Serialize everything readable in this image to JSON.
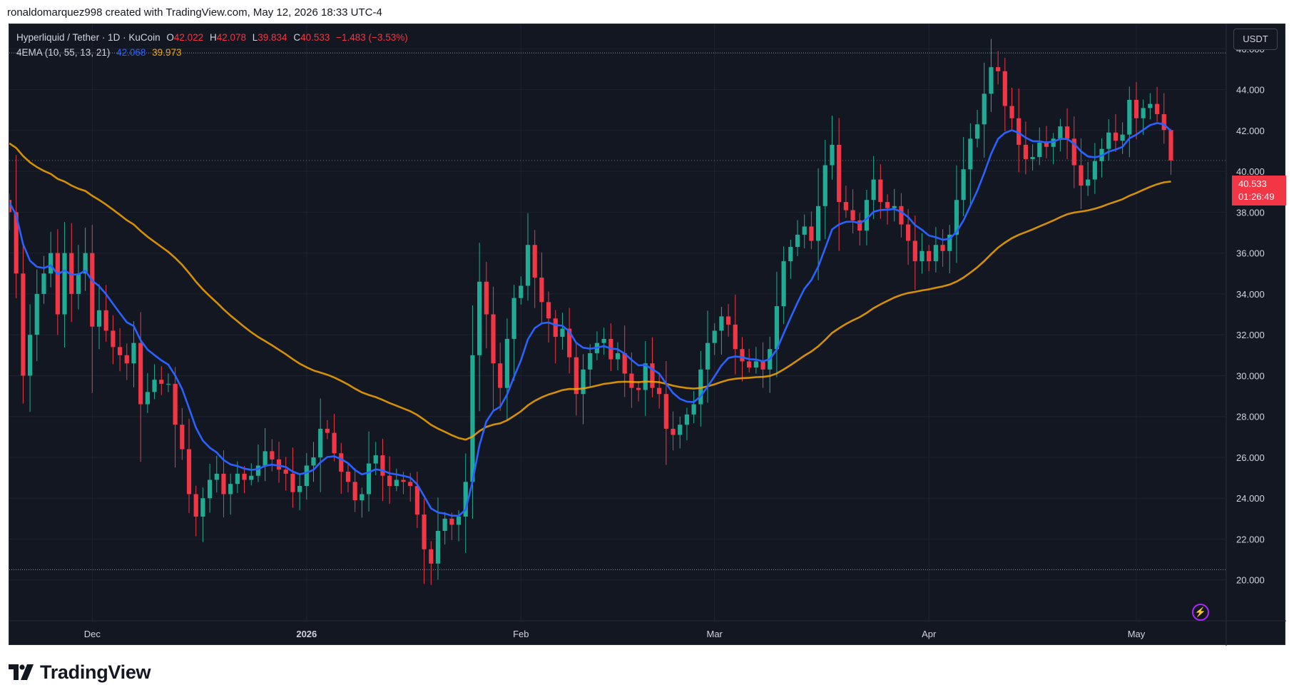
{
  "header": {
    "credit": "ronaldomarquez998 created with TradingView.com, May 12, 2026 18:33 UTC-4"
  },
  "legend": {
    "symbol": "Hyperliquid / Tether · 1D · KuCoin",
    "o_label": "O",
    "o": "42.022",
    "h_label": "H",
    "h": "42.078",
    "l_label": "L",
    "l": "39.834",
    "c_label": "C",
    "c": "40.533",
    "change": "−1.483 (−3.53%)",
    "indicator": "4EMA (10, 55, 13, 21)",
    "ema_fast": "42.068",
    "ema_slow": "39.973"
  },
  "currency_button": "USDT",
  "last_price": {
    "price": "40.533",
    "countdown": "01:26:49"
  },
  "brand": {
    "name": "TradingView"
  },
  "icons": {
    "bolt": "lightning-icon",
    "logo": "tradingview-logo-icon"
  },
  "colors": {
    "up": "#22ab94",
    "down": "#f23645",
    "ema_fast": "#2962ff",
    "ema_slow": "#f7a600",
    "background": "#131722"
  },
  "chart_data": {
    "type": "candlestick",
    "title": "Hyperliquid / Tether · 1D · KuCoin",
    "y_axis": {
      "ticks": [
        "20.000",
        "22.000",
        "24.000",
        "26.000",
        "28.000",
        "30.000",
        "32.000",
        "34.000",
        "36.000",
        "38.000",
        "40.000",
        "42.000",
        "44.000",
        "46.000"
      ],
      "ylim": [
        18.0,
        47.2
      ],
      "position": "right"
    },
    "x_axis": {
      "range": [
        "2025-11-19",
        "2026-05-14"
      ],
      "ticks": [
        {
          "label": "Dec",
          "date": "2025-12-01"
        },
        {
          "label": "2026",
          "date": "2026-01-01",
          "bold": true
        },
        {
          "label": "Feb",
          "date": "2026-02-01"
        },
        {
          "label": "Mar",
          "date": "2026-03-01"
        },
        {
          "label": "Apr",
          "date": "2026-04-01"
        },
        {
          "label": "May",
          "date": "2026-05-01"
        }
      ]
    },
    "reference_lines": [
      45.8,
      20.5
    ],
    "last_price_line": 40.533,
    "closes_start": "2025-11-19",
    "closes": [
      38,
      35,
      30,
      32,
      34,
      35,
      36,
      33,
      36,
      34,
      35,
      36,
      32.4,
      33.2,
      32.2,
      31.4,
      31,
      30.6,
      31.6,
      28.6,
      29.2,
      29.8,
      29.6,
      29.6,
      27.6,
      26.4,
      24.2,
      23.1,
      24,
      24.9,
      25.2,
      24.2,
      24.7,
      25.2,
      24.9,
      25.1,
      25.6,
      26.3,
      25.9,
      25.4,
      25.2,
      24.3,
      24.6,
      25.6,
      26,
      27.4,
      27.2,
      26.2,
      25.3,
      24.8,
      23.9,
      24.2,
      25.7,
      26.1,
      25.1,
      24.6,
      24.9,
      24.8,
      24.6,
      23.2,
      21.5,
      20.8,
      22.4,
      23,
      22.7,
      23.1,
      24.8,
      31,
      34.6,
      33,
      30.6,
      29.4,
      31.8,
      33.8,
      34.4,
      36.4,
      34.8,
      33.6,
      32.8,
      31.9,
      32.3,
      30.9,
      29.1,
      30.3,
      31.1,
      31.6,
      31.8,
      30.8,
      31.1,
      30.1,
      29.4,
      29.3,
      30.6,
      29.4,
      29.1,
      27.4,
      27.1,
      27.6,
      28.1,
      28.6,
      30.3,
      31.6,
      32.2,
      32.9,
      32.5,
      31.3,
      30.7,
      30.4,
      30.7,
      30.3,
      31.3,
      33.4,
      35.6,
      36.3,
      36.9,
      37.3,
      36.6,
      38.3,
      40.3,
      41.3,
      38.5,
      38.1,
      37.6,
      37.1,
      38.6,
      39.6,
      38.5,
      38.2,
      38.3,
      37.4,
      36.6,
      35.6,
      36.1,
      35.6,
      36.4,
      36.1,
      36.9,
      38.6,
      40.1,
      41.6,
      42.3,
      43.8,
      45.1,
      44.9,
      43.2,
      42.6,
      41.3,
      40.6,
      40.7,
      41.4,
      41.2,
      41.6,
      42.2,
      41.6,
      40.3,
      39.3,
      39.6,
      40.5,
      41.1,
      41.9,
      41.5,
      41.8,
      43.5,
      42.6,
      43.1,
      43.3,
      42.8,
      42.022,
      40.533
    ],
    "series": [
      {
        "name": "EMA (fast)",
        "last": 42.068
      },
      {
        "name": "EMA (slow)",
        "last": 39.973
      }
    ]
  }
}
